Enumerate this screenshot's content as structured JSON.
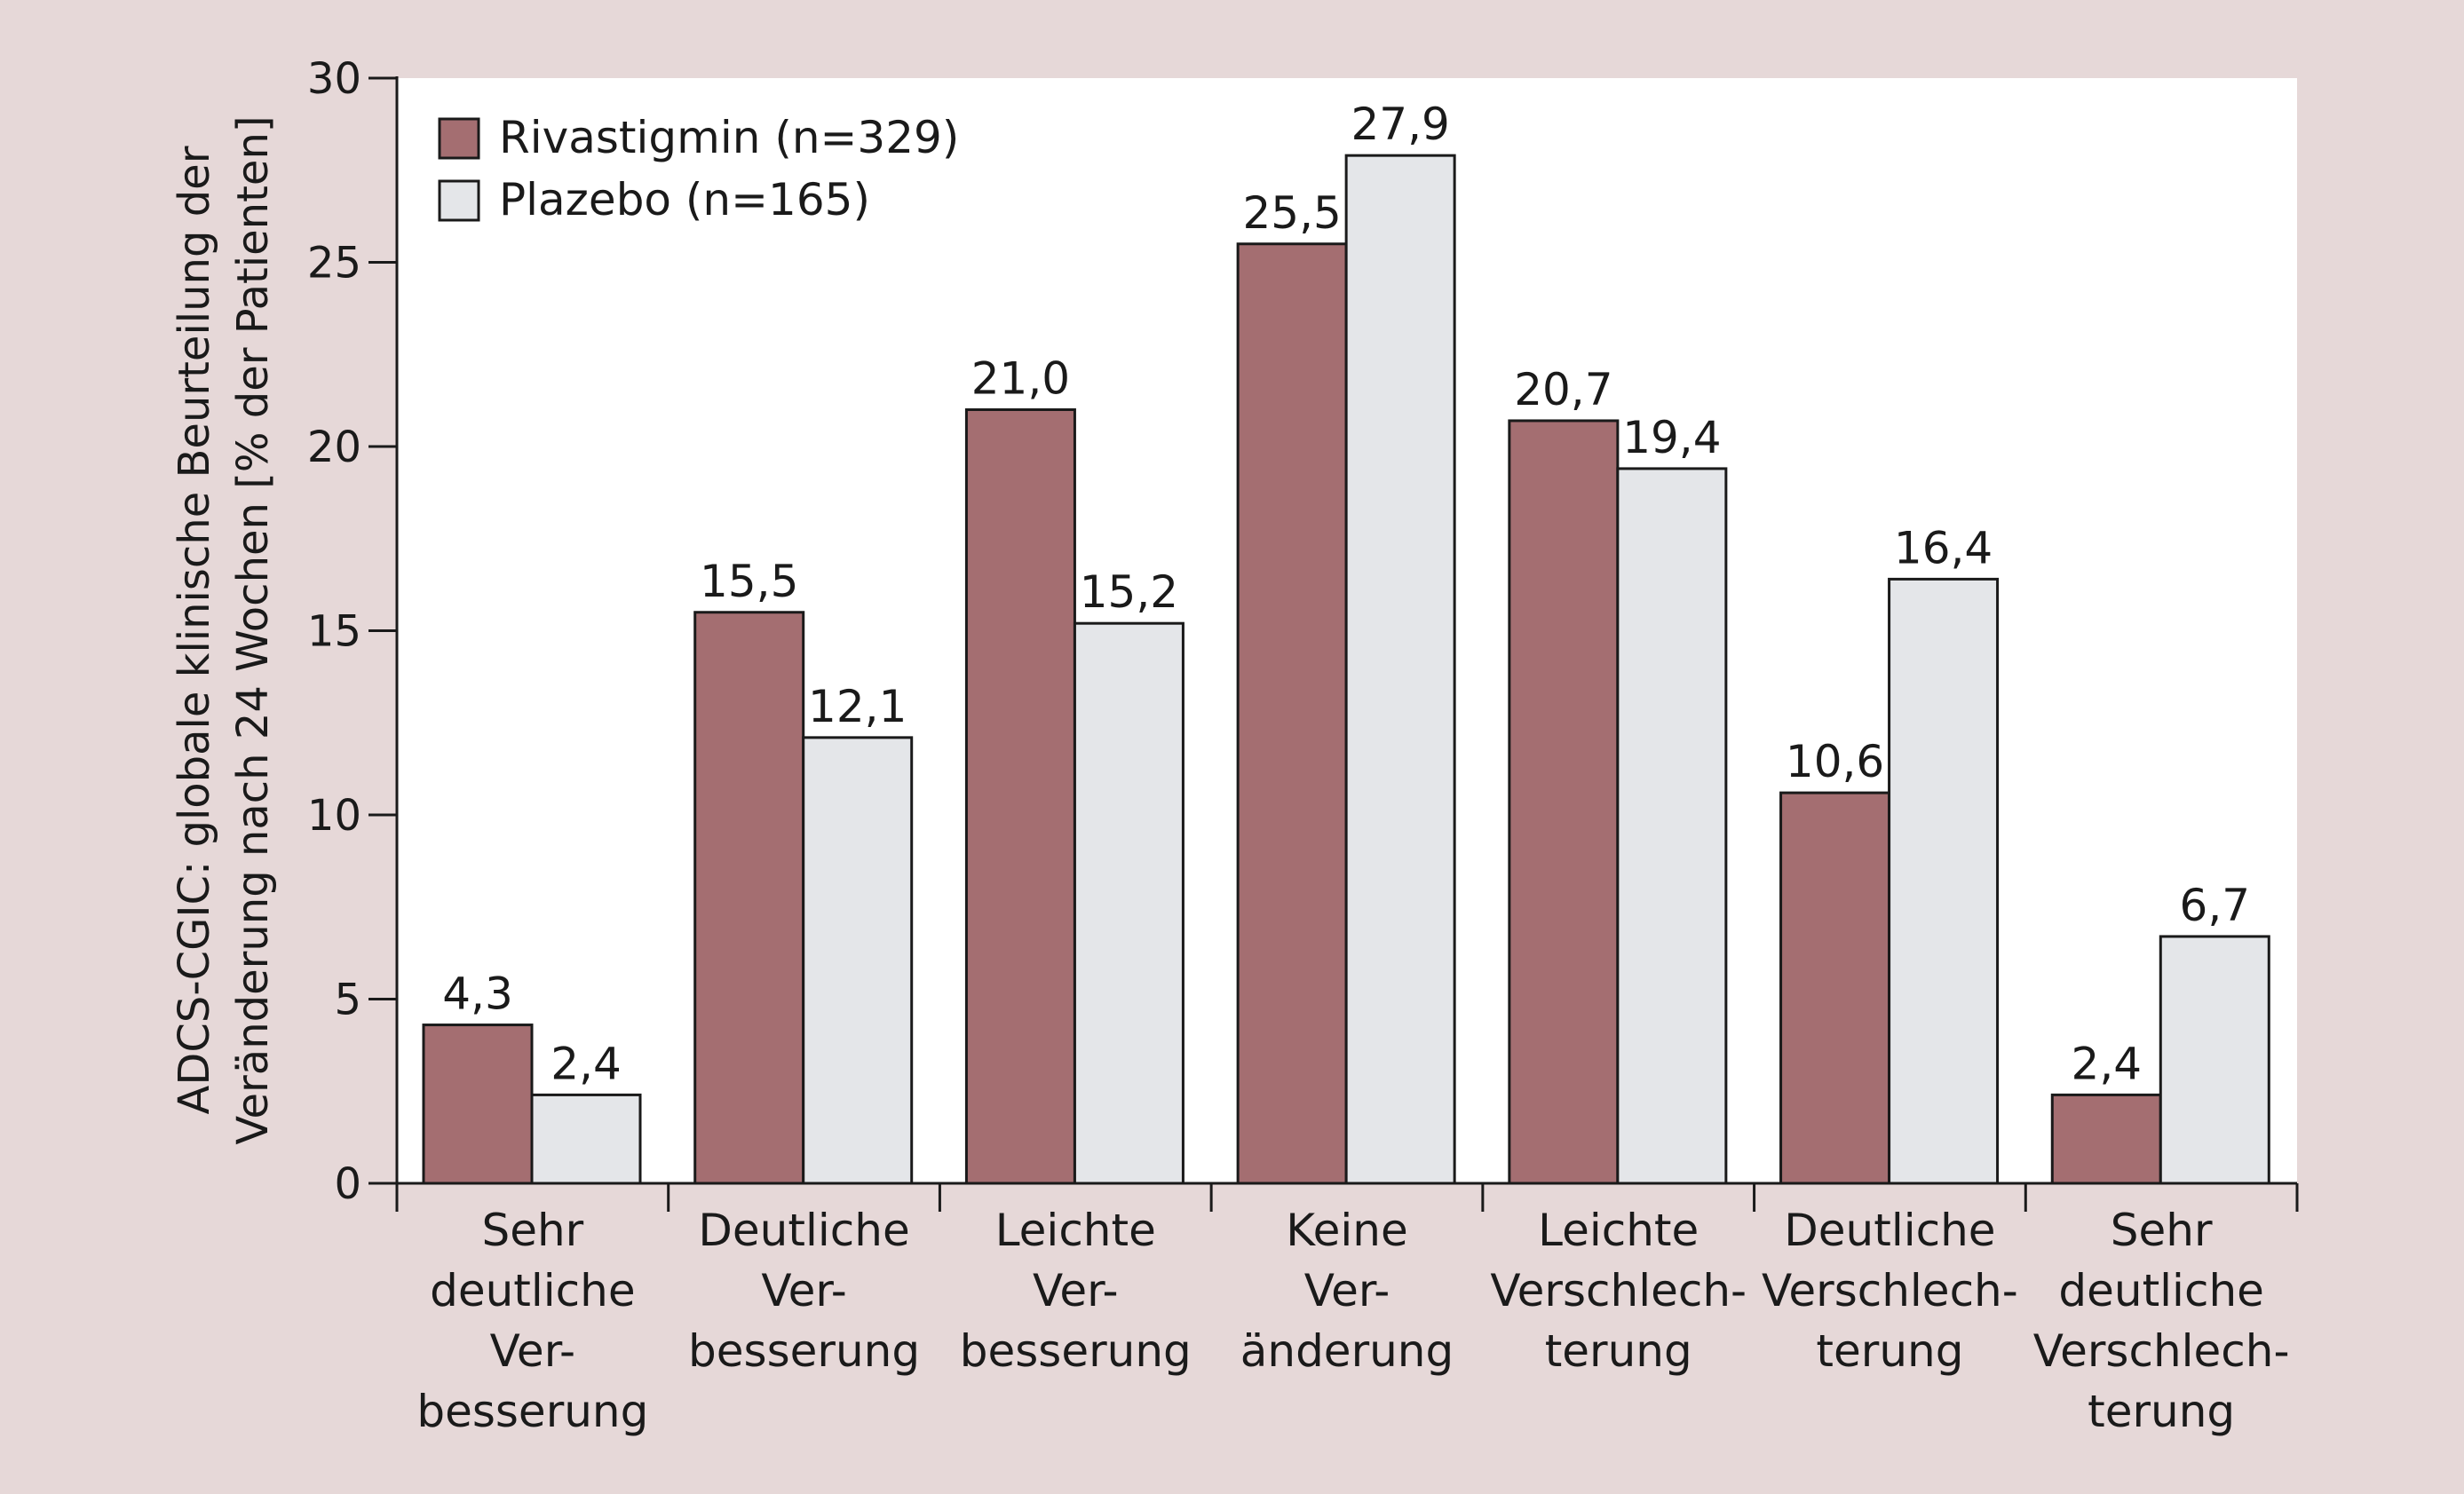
{
  "chart_data": {
    "type": "bar",
    "ylabel_lines": [
      "ADCS-CGIC: globale klinische Beurteilung der",
      "Veränderung nach 24 Wochen [% der Patienten]"
    ],
    "ylim": [
      0,
      30
    ],
    "yticks": [
      "0",
      "5",
      "10",
      "15",
      "20",
      "25",
      "30"
    ],
    "categories": [
      [
        "Sehr",
        "deutliche",
        "Ver-",
        "besserung"
      ],
      [
        "Deutliche",
        "Ver-",
        "besserung"
      ],
      [
        "Leichte",
        "Ver-",
        "besserung"
      ],
      [
        "Keine",
        "Ver-",
        "änderung"
      ],
      [
        "Leichte",
        "Verschlech-",
        "terung"
      ],
      [
        "Deutliche",
        "Verschlech-",
        "terung"
      ],
      [
        "Sehr",
        "deutliche",
        "Verschlech-",
        "terung"
      ]
    ],
    "series": [
      {
        "name": "Rivastigmin (n=329)",
        "color": "#a46e71",
        "values": [
          4.3,
          15.5,
          21.0,
          25.5,
          20.7,
          10.6,
          2.4
        ],
        "labels": [
          "4,3",
          "15,5",
          "21,0",
          "25,5",
          "20,7",
          "10,6",
          "2,4"
        ]
      },
      {
        "name": "Plazebo (n=165)",
        "color": "#e4e6e9",
        "values": [
          2.4,
          12.1,
          15.2,
          27.9,
          19.4,
          16.4,
          6.7
        ],
        "labels": [
          "2,4",
          "12,1",
          "15,2",
          "27,9",
          "19,4",
          "16,4",
          "6,7"
        ]
      }
    ],
    "legend_position": "top-left",
    "grid": false,
    "background_color": "#e6d8d8",
    "plot_color": "#ffffff"
  }
}
